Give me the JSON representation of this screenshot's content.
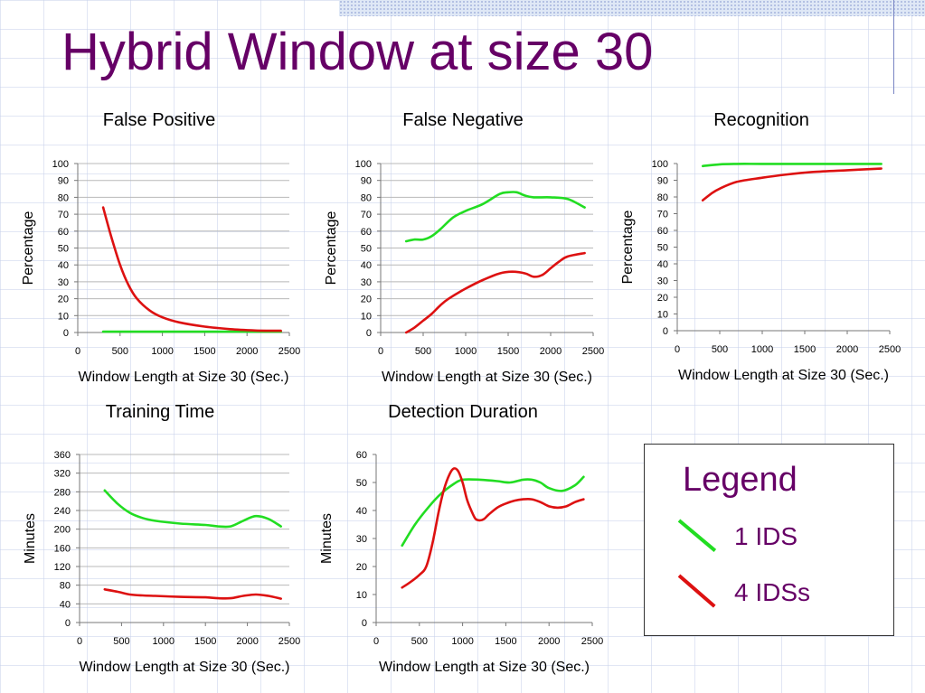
{
  "slide": {
    "title": "Hybrid Window at size 30"
  },
  "colors": {
    "ids1": "#22dd22",
    "ids4": "#dd1111",
    "title": "#660066"
  },
  "legend": {
    "title": "Legend",
    "items": [
      {
        "label": "1 IDS",
        "color": "#22dd22"
      },
      {
        "label": "4 IDSs",
        "color": "#dd1111"
      }
    ]
  },
  "chart_data": [
    {
      "id": "false-positive",
      "type": "line",
      "title": "False Positive",
      "xlabel": "Window Length at Size 30 (Sec.)",
      "ylabel": "Percentage",
      "xlim": [
        0,
        2500
      ],
      "ylim": [
        0,
        100
      ],
      "xticks": [
        "0",
        "500",
        "1000",
        "1500",
        "2000",
        "2500"
      ],
      "yticks": [
        "0",
        "10",
        "20",
        "30",
        "40",
        "50",
        "60",
        "70",
        "80",
        "90",
        "100"
      ],
      "grid": true,
      "series": [
        {
          "name": "1 IDS",
          "color": "#22dd22",
          "x": [
            300,
            600,
            900,
            1200,
            1500,
            1800,
            2100,
            2400
          ],
          "y": [
            0.5,
            0.5,
            0.5,
            0.5,
            0.5,
            0.5,
            0.5,
            0.5
          ]
        },
        {
          "name": "4 IDSs",
          "color": "#dd1111",
          "x": [
            300,
            400,
            500,
            600,
            700,
            850,
            1000,
            1200,
            1500,
            1800,
            2100,
            2400
          ],
          "y": [
            74,
            56,
            40,
            28,
            20,
            13,
            9,
            6,
            3.5,
            2,
            1.2,
            1
          ]
        }
      ]
    },
    {
      "id": "false-negative",
      "type": "line",
      "title": "False Negative",
      "xlabel": "Window Length at Size 30 (Sec.)",
      "ylabel": "Percentage",
      "xlim": [
        0,
        2500
      ],
      "ylim": [
        0,
        100
      ],
      "xticks": [
        "0",
        "500",
        "1000",
        "1500",
        "2000",
        "2500"
      ],
      "yticks": [
        "0",
        "10",
        "20",
        "30",
        "40",
        "50",
        "60",
        "70",
        "80",
        "90",
        "100"
      ],
      "grid": true,
      "series": [
        {
          "name": "1 IDS",
          "color": "#22dd22",
          "x": [
            300,
            400,
            500,
            600,
            700,
            850,
            1000,
            1200,
            1400,
            1500,
            1600,
            1700,
            1800,
            2000,
            2200,
            2400
          ],
          "y": [
            54,
            55,
            55,
            57,
            61,
            68,
            72,
            76,
            82,
            83,
            83,
            81,
            80,
            80,
            79,
            74
          ]
        },
        {
          "name": "4 IDSs",
          "color": "#dd1111",
          "x": [
            300,
            400,
            500,
            600,
            700,
            800,
            1000,
            1200,
            1400,
            1550,
            1700,
            1800,
            1900,
            2000,
            2100,
            2200,
            2400
          ],
          "y": [
            0,
            3,
            7,
            11,
            16,
            20,
            26,
            31,
            35,
            36,
            35,
            33,
            34,
            38,
            42,
            45,
            47
          ]
        }
      ]
    },
    {
      "id": "recognition",
      "type": "line",
      "title": "Recognition",
      "xlabel": "Window Length at Size 30 (Sec.)",
      "ylabel": "Percentage",
      "xlim": [
        0,
        2500
      ],
      "ylim": [
        0,
        100
      ],
      "xticks": [
        "0",
        "500",
        "1000",
        "1500",
        "2000",
        "2500"
      ],
      "yticks": [
        "0",
        "10",
        "20",
        "30",
        "40",
        "50",
        "60",
        "70",
        "80",
        "90",
        "100"
      ],
      "grid": false,
      "series": [
        {
          "name": "1 IDS",
          "color": "#22dd22",
          "x": [
            300,
            500,
            700,
            1000,
            1500,
            2000,
            2400
          ],
          "y": [
            98.5,
            99.5,
            99.8,
            99.8,
            99.8,
            99.8,
            99.8
          ]
        },
        {
          "name": "4 IDSs",
          "color": "#dd1111",
          "x": [
            300,
            400,
            500,
            700,
            1000,
            1300,
            1600,
            2000,
            2400
          ],
          "y": [
            78,
            82,
            85,
            89,
            91.5,
            93.5,
            95,
            96,
            97
          ]
        }
      ]
    },
    {
      "id": "training-time",
      "type": "line",
      "title": "Training Time",
      "xlabel": "Window Length at Size 30 (Sec.)",
      "ylabel": "Minutes",
      "xlim": [
        0,
        2500
      ],
      "ylim": [
        0,
        360
      ],
      "xticks": [
        "0",
        "500",
        "1000",
        "1500",
        "2000",
        "2500"
      ],
      "yticks": [
        "0",
        "40",
        "80",
        "120",
        "160",
        "200",
        "240",
        "280",
        "320",
        "360"
      ],
      "grid": true,
      "series": [
        {
          "name": "1 IDS",
          "color": "#22dd22",
          "x": [
            300,
            450,
            600,
            750,
            900,
            1200,
            1500,
            1650,
            1800,
            1950,
            2100,
            2250,
            2400
          ],
          "y": [
            283,
            255,
            235,
            224,
            218,
            212,
            209,
            206,
            206,
            218,
            228,
            222,
            206
          ]
        },
        {
          "name": "4 IDSs",
          "color": "#dd1111",
          "x": [
            300,
            450,
            600,
            750,
            900,
            1200,
            1500,
            1650,
            1800,
            1950,
            2100,
            2250,
            2400
          ],
          "y": [
            71,
            66,
            60,
            58,
            57,
            55,
            54,
            52,
            52,
            57,
            60,
            57,
            51
          ]
        }
      ]
    },
    {
      "id": "detection-duration",
      "type": "line",
      "title": "Detection Duration",
      "xlabel": "Window Length at Size 30 (Sec.)",
      "ylabel": "Minutes",
      "xlim": [
        0,
        2500
      ],
      "ylim": [
        0,
        60
      ],
      "xticks": [
        "0",
        "500",
        "1000",
        "1500",
        "2000",
        "2500"
      ],
      "yticks": [
        "0",
        "10",
        "20",
        "30",
        "40",
        "50",
        "60"
      ],
      "grid": false,
      "series": [
        {
          "name": "1 IDS",
          "color": "#22dd22",
          "x": [
            300,
            450,
            600,
            750,
            900,
            1000,
            1200,
            1400,
            1550,
            1700,
            1800,
            1900,
            2000,
            2150,
            2300,
            2400
          ],
          "y": [
            27.5,
            35,
            41,
            46,
            49.5,
            51,
            51,
            50.5,
            50,
            51,
            51,
            50,
            48,
            47,
            49,
            52
          ]
        },
        {
          "name": "4 IDSs",
          "color": "#dd1111",
          "x": [
            300,
            400,
            500,
            580,
            650,
            720,
            780,
            850,
            900,
            950,
            1000,
            1050,
            1100,
            1150,
            1200,
            1250,
            1300,
            1400,
            1500,
            1600,
            1700,
            1800,
            1900,
            2000,
            2100,
            2200,
            2300,
            2400
          ],
          "y": [
            12.5,
            14.5,
            17,
            20,
            28,
            39,
            47,
            53,
            55,
            54,
            50,
            44,
            40,
            37,
            36.5,
            37,
            38.5,
            41,
            42.5,
            43.5,
            44,
            44,
            43,
            41.5,
            41,
            41.5,
            43,
            44
          ]
        }
      ]
    }
  ]
}
